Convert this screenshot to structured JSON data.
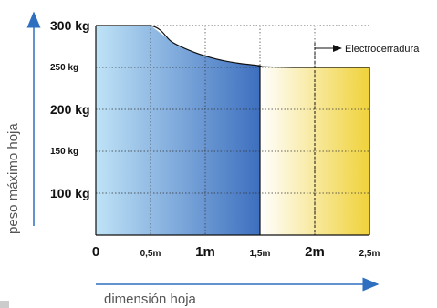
{
  "chart_data": {
    "type": "area",
    "title": "",
    "xlabel": "dimensión hoja",
    "ylabel": "peso máximo hoja",
    "xlim": [
      0,
      2.5
    ],
    "ylim": [
      50,
      300
    ],
    "x_tick_labels": [
      "0",
      "0,5m",
      "1m",
      "1,5m",
      "2m",
      "2,5m"
    ],
    "x_tick_values": [
      0,
      0.5,
      1,
      1.5,
      2,
      2.5
    ],
    "y_tick_labels": [
      "100 kg",
      "150 kg",
      "200 kg",
      "250 kg",
      "300 kg"
    ],
    "y_tick_values": [
      100,
      150,
      200,
      250,
      300
    ],
    "grid": true,
    "series": [
      {
        "color": "#3f72c0",
        "x": [
          0,
          0.5,
          0.7,
          0.9,
          1.1,
          1.3,
          1.5
        ],
        "y": [
          300,
          300,
          280,
          268,
          260,
          255,
          252
        ]
      },
      {
        "color": "#f0d43a",
        "x": [
          1.5,
          1.8,
          2.0,
          2.5
        ],
        "y": [
          251,
          250,
          250,
          250
        ]
      }
    ],
    "annotations": [
      {
        "text": "Electrocerradura",
        "x": 2.0
      }
    ]
  }
}
